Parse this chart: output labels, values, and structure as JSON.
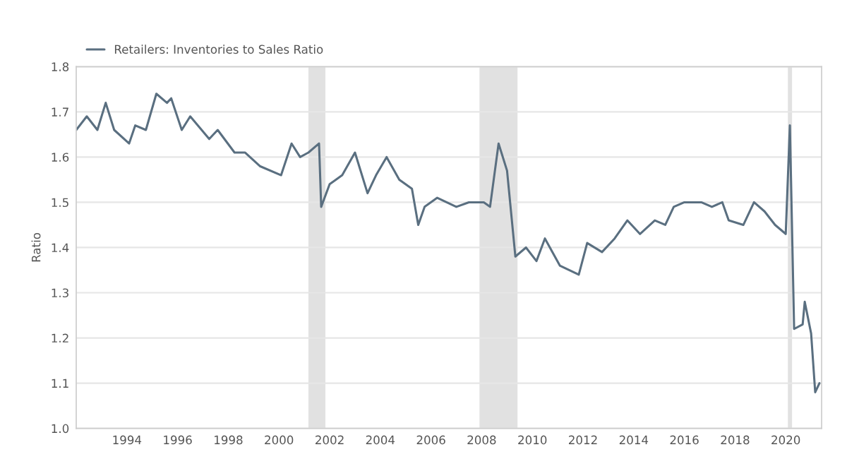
{
  "chart_data": {
    "type": "line",
    "ylabel": "Ratio",
    "x": [
      "1992-01",
      "1992-06",
      "1992-11",
      "1993-03",
      "1993-07",
      "1994-02",
      "1994-05",
      "1994-10",
      "1995-03",
      "1995-08",
      "1995-10",
      "1996-03",
      "1996-07",
      "1997-04",
      "1997-08",
      "1998-04",
      "1998-09",
      "1999-04",
      "2000-02",
      "2000-07",
      "2000-11",
      "2001-03",
      "2001-08",
      "2001-09",
      "2002-01",
      "2002-07",
      "2003-01",
      "2003-07",
      "2003-11",
      "2004-04",
      "2004-10",
      "2005-04",
      "2005-07",
      "2005-10",
      "2006-04",
      "2007-01",
      "2007-07",
      "2008-02",
      "2008-05",
      "2008-09",
      "2009-01",
      "2009-05",
      "2009-10",
      "2010-03",
      "2010-07",
      "2011-02",
      "2011-11",
      "2012-03",
      "2012-10",
      "2013-04",
      "2013-10",
      "2014-04",
      "2014-11",
      "2015-04",
      "2015-08",
      "2016-01",
      "2016-09",
      "2017-02",
      "2017-07",
      "2017-10",
      "2018-05",
      "2018-10",
      "2019-03",
      "2019-08",
      "2020-01",
      "2020-03",
      "2020-05",
      "2020-09",
      "2020-10",
      "2021-01",
      "2021-03",
      "2021-05"
    ],
    "series": [
      {
        "name": "Retailers: Inventories to Sales Ratio",
        "color": "#5a6f80",
        "values": [
          1.66,
          1.69,
          1.66,
          1.72,
          1.66,
          1.63,
          1.67,
          1.66,
          1.74,
          1.72,
          1.73,
          1.66,
          1.69,
          1.64,
          1.66,
          1.61,
          1.61,
          1.58,
          1.56,
          1.63,
          1.6,
          1.61,
          1.63,
          1.49,
          1.54,
          1.56,
          1.61,
          1.52,
          1.56,
          1.6,
          1.55,
          1.53,
          1.45,
          1.49,
          1.51,
          1.49,
          1.5,
          1.5,
          1.49,
          1.63,
          1.57,
          1.38,
          1.4,
          1.37,
          1.42,
          1.36,
          1.34,
          1.41,
          1.39,
          1.42,
          1.46,
          1.43,
          1.46,
          1.45,
          1.49,
          1.5,
          1.5,
          1.49,
          1.5,
          1.46,
          1.45,
          1.5,
          1.48,
          1.45,
          1.43,
          1.67,
          1.22,
          1.23,
          1.28,
          1.21,
          1.08,
          1.1
        ]
      }
    ],
    "xlim": [
      "1992-01",
      "2021-06"
    ],
    "xticks": [
      "1994",
      "1996",
      "1998",
      "2000",
      "2002",
      "2004",
      "2006",
      "2008",
      "2010",
      "2012",
      "2014",
      "2016",
      "2018",
      "2020"
    ],
    "ylim": [
      1.0,
      1.8
    ],
    "yticks": [
      {
        "value": 1.0,
        "label": "1.0"
      },
      1.1,
      1.2,
      1.3,
      1.4,
      1.5,
      1.6,
      1.7,
      1.8
    ],
    "bands": [
      {
        "axis": "x",
        "from": "2001-03",
        "to": "2001-11",
        "color": "#e1e1e1"
      },
      {
        "axis": "x",
        "from": "2007-12",
        "to": "2009-06",
        "color": "#e1e1e1"
      },
      {
        "axis": "x",
        "from": "2020-02",
        "to": "2020-04",
        "color": "#e1e1e1"
      }
    ],
    "grid": "y",
    "legend": "top left"
  }
}
